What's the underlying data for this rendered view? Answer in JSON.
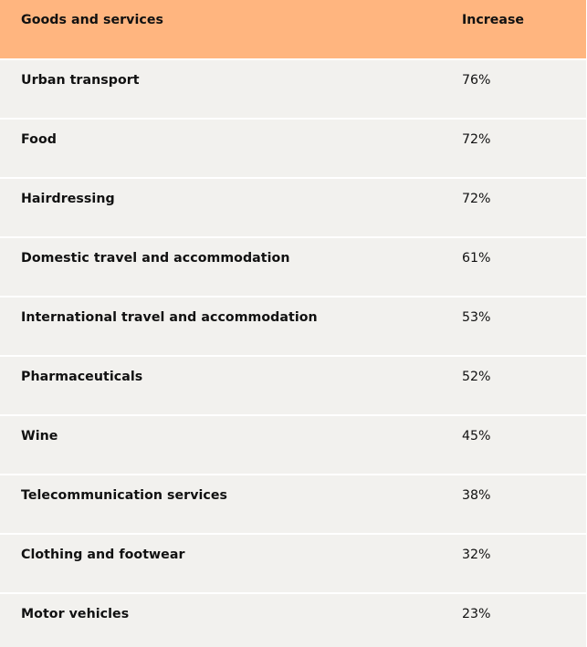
{
  "table": {
    "headers": {
      "goods": "Goods and services",
      "increase": "Increase"
    },
    "rows": [
      {
        "item": "Urban transport",
        "increase": "76%"
      },
      {
        "item": "Food",
        "increase": "72%"
      },
      {
        "item": "Hairdressing",
        "increase": "72%"
      },
      {
        "item": "Domestic travel and accommodation",
        "increase": "61%"
      },
      {
        "item": "International travel and accommodation",
        "increase": "53%"
      },
      {
        "item": "Pharmaceuticals",
        "increase": "52%"
      },
      {
        "item": "Wine",
        "increase": "45%"
      },
      {
        "item": "Telecommunication services",
        "increase": "38%"
      },
      {
        "item": "Clothing and footwear",
        "increase": "32%"
      },
      {
        "item": "Motor vehicles",
        "increase": "23%"
      }
    ]
  },
  "colors": {
    "header_background": "#ffb57f",
    "row_background": "#f2f1ee",
    "text": "#111111"
  }
}
